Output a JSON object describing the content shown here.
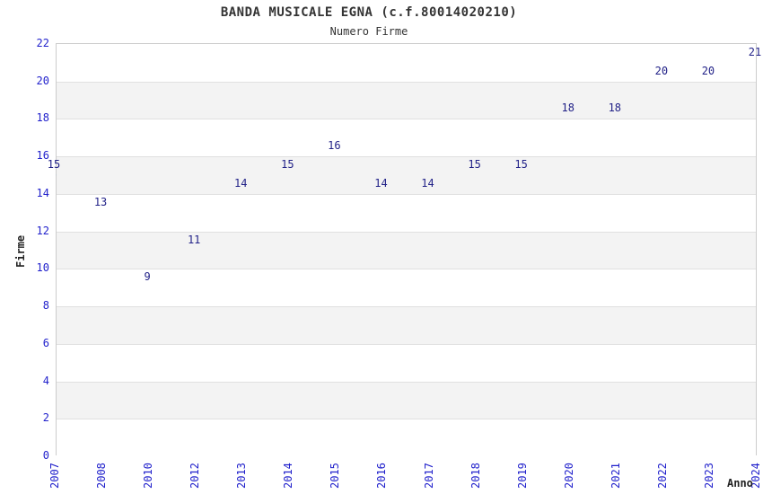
{
  "chart_data": {
    "type": "line",
    "title": "BANDA MUSICALE EGNA (c.f.80014020210)",
    "subtitle": "Numero Firme",
    "xlabel": "Anno",
    "ylabel": "Firme",
    "categories": [
      "2007",
      "2008",
      "2010",
      "2012",
      "2013",
      "2014",
      "2015",
      "2016",
      "2017",
      "2018",
      "2019",
      "2020",
      "2021",
      "2022",
      "2023",
      "2024"
    ],
    "values": [
      15,
      13,
      9,
      11,
      14,
      15,
      16,
      14,
      14,
      15,
      15,
      18,
      18,
      20,
      20,
      21
    ],
    "ylim": [
      0,
      22
    ],
    "ytick_step": 2,
    "yticks": [
      0,
      2,
      4,
      6,
      8,
      10,
      12,
      14,
      16,
      18,
      20,
      22
    ],
    "grid": true,
    "legend": "none",
    "band_pattern": "alternating horizontal bands every 2 units, white and light gray",
    "data_labels_shown": true,
    "colors": {
      "line": "#7cace0",
      "data_label": "#222288",
      "tick_label": "#2222cc",
      "grid_line": "#e0e0e0",
      "band_gray": "#f3f3f3",
      "band_white": "#ffffff",
      "plot_border": "#cccccc",
      "title_text": "#333333",
      "axis_title_text": "#222222",
      "background": "#ffffff"
    }
  }
}
